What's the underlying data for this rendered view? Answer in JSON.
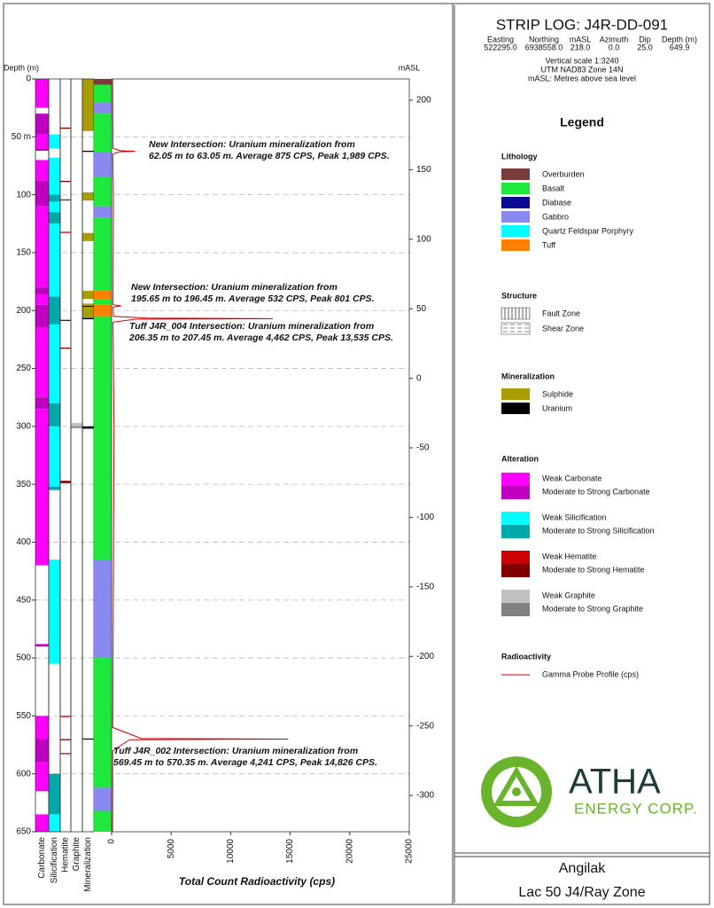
{
  "chart_data": {
    "type": "strip_log",
    "title": "STRIP LOG: J4R-DD-091",
    "collar": {
      "headers": [
        "Easting",
        "Northing",
        "mASL",
        "Azimuth",
        "Dip",
        "Depth (m)"
      ],
      "values": [
        "522295.0",
        "6938558.0",
        "218.0",
        "0.0",
        "25.0",
        "649.9"
      ]
    },
    "notes": [
      "Vertical scale 1:3240",
      "UTM NAD83 Zone 14N",
      "mASL: Metres above sea level"
    ],
    "ylabel": "Depth (m)",
    "y2label": "mASL",
    "xlabel": "Total Count Radioactivity (cps)",
    "ylim": [
      0,
      650
    ],
    "yticks": [
      0,
      {
        "value": 50,
        "label": "50 m"
      },
      100,
      150,
      200,
      250,
      300,
      350,
      400,
      450,
      500,
      550,
      600,
      650
    ],
    "y2lim": [
      215.3,
      -326.1
    ],
    "y2ticks": [
      200,
      150,
      100,
      50,
      0,
      -50,
      -100,
      -150,
      -200,
      -250,
      -300
    ],
    "xlim": [
      0,
      25000
    ],
    "xticks": [
      0,
      5000,
      10000,
      15000,
      20000,
      25000
    ],
    "grid": true,
    "tracks": [
      {
        "name": "Carbonate",
        "intervals": [
          {
            "from": 0,
            "to": 25,
            "color": "#ff00ff"
          },
          {
            "from": 30,
            "to": 48,
            "color": "#c000c0"
          },
          {
            "from": 48,
            "to": 60,
            "color": "#ff00ff"
          },
          {
            "from": 60,
            "to": 62,
            "color": "#c000c0"
          },
          {
            "from": 70,
            "to": 88,
            "color": "#ff00ff"
          },
          {
            "from": 88,
            "to": 110,
            "color": "#c000c0"
          },
          {
            "from": 110,
            "to": 180,
            "color": "#ff00ff"
          },
          {
            "from": 180,
            "to": 186,
            "color": "#c000c0"
          },
          {
            "from": 186,
            "to": 195,
            "color": "#ff00ff"
          },
          {
            "from": 195,
            "to": 215,
            "color": "#c000c0"
          },
          {
            "from": 215,
            "to": 275,
            "color": "#ff00ff"
          },
          {
            "from": 275,
            "to": 285,
            "color": "#c000c0"
          },
          {
            "from": 285,
            "to": 420,
            "color": "#ff00ff"
          },
          {
            "from": 488,
            "to": 490,
            "color": "#c000c0"
          },
          {
            "from": 550,
            "to": 570,
            "color": "#ff00ff"
          },
          {
            "from": 570,
            "to": 590,
            "color": "#c000c0"
          },
          {
            "from": 590,
            "to": 615,
            "color": "#ff00ff"
          },
          {
            "from": 635,
            "to": 650,
            "color": "#ff00ff"
          }
        ]
      },
      {
        "name": "Silicification",
        "intervals": [
          {
            "from": 48,
            "to": 60,
            "color": "#00ffff"
          },
          {
            "from": 68,
            "to": 100,
            "color": "#00ffff"
          },
          {
            "from": 100,
            "to": 106,
            "color": "#00a8a8"
          },
          {
            "from": 106,
            "to": 115,
            "color": "#00ffff"
          },
          {
            "from": 115,
            "to": 125,
            "color": "#00a8a8"
          },
          {
            "from": 125,
            "to": 188,
            "color": "#00ffff"
          },
          {
            "from": 188,
            "to": 212,
            "color": "#00a8a8"
          },
          {
            "from": 212,
            "to": 280,
            "color": "#00ffff"
          },
          {
            "from": 280,
            "to": 300,
            "color": "#00a8a8"
          },
          {
            "from": 300,
            "to": 352,
            "color": "#00ffff"
          },
          {
            "from": 352,
            "to": 355,
            "color": "#00a8a8"
          },
          {
            "from": 415,
            "to": 505,
            "color": "#00ffff"
          },
          {
            "from": 600,
            "to": 635,
            "color": "#00a8a8"
          },
          {
            "from": 635,
            "to": 650,
            "color": "#00ffff"
          }
        ]
      },
      {
        "name": "Hematite",
        "intervals": [
          {
            "from": 42,
            "to": 43,
            "color": "#800000"
          },
          {
            "from": 88,
            "to": 89,
            "color": "#800000"
          },
          {
            "from": 104,
            "to": 105,
            "color": "#cc0000"
          },
          {
            "from": 132,
            "to": 133,
            "color": "#cc0000"
          },
          {
            "from": 208,
            "to": 209,
            "color": "#800000"
          },
          {
            "from": 232,
            "to": 233,
            "color": "#800000"
          },
          {
            "from": 347,
            "to": 349,
            "color": "#800000"
          },
          {
            "from": 550,
            "to": 551,
            "color": "#cc0000"
          },
          {
            "from": 570,
            "to": 571,
            "color": "#800000"
          },
          {
            "from": 582,
            "to": 583,
            "color": "#cc0000"
          }
        ]
      },
      {
        "name": "Graphite",
        "intervals": [
          {
            "from": 297,
            "to": 302,
            "color": "#c0c0c0"
          },
          {
            "from": 300,
            "to": 301,
            "color": "#808080"
          }
        ]
      },
      {
        "name": "Mineralization",
        "intervals": [
          {
            "from": 0,
            "to": 45,
            "color": "#a89c00"
          },
          {
            "from": 62,
            "to": 63,
            "color": "#000000"
          },
          {
            "from": 98,
            "to": 105,
            "color": "#a89c00"
          },
          {
            "from": 133,
            "to": 140,
            "color": "#a89c00"
          },
          {
            "from": 183,
            "to": 190,
            "color": "#a89c00"
          },
          {
            "from": 194,
            "to": 206,
            "color": "#a89c00"
          },
          {
            "from": 196,
            "to": 196.5,
            "color": "#000000"
          },
          {
            "from": 206.3,
            "to": 207.5,
            "color": "#000000"
          },
          {
            "from": 300,
            "to": 302,
            "color": "#000000"
          },
          {
            "from": 569.5,
            "to": 570.4,
            "color": "#000000"
          }
        ]
      }
    ],
    "lithology": [
      {
        "from": 0,
        "to": 5,
        "color": "#7a3b3b"
      },
      {
        "from": 5,
        "to": 20,
        "color": "#1ee83c"
      },
      {
        "from": 20,
        "to": 30,
        "color": "#8888ee"
      },
      {
        "from": 30,
        "to": 63,
        "color": "#1ee83c"
      },
      {
        "from": 63,
        "to": 85,
        "color": "#8888ee"
      },
      {
        "from": 85,
        "to": 110,
        "color": "#1ee83c"
      },
      {
        "from": 110,
        "to": 120,
        "color": "#8888ee"
      },
      {
        "from": 120,
        "to": 183,
        "color": "#1ee83c"
      },
      {
        "from": 183,
        "to": 190,
        "color": "#ff8000"
      },
      {
        "from": 190,
        "to": 195,
        "color": "#1ee83c"
      },
      {
        "from": 195,
        "to": 205,
        "color": "#ff8000"
      },
      {
        "from": 205,
        "to": 415,
        "color": "#1ee83c"
      },
      {
        "from": 415,
        "to": 500,
        "color": "#8888ee"
      },
      {
        "from": 500,
        "to": 612,
        "color": "#1ee83c"
      },
      {
        "from": 612,
        "to": 632,
        "color": "#8888ee"
      },
      {
        "from": 632,
        "to": 650,
        "color": "#1ee83c"
      }
    ],
    "gamma": {
      "color": "#cc0000",
      "depth": [
        0,
        60,
        62,
        62.5,
        63,
        65,
        100,
        195,
        196,
        197,
        205,
        206.5,
        207,
        207.5,
        210,
        300,
        560,
        569.5,
        570,
        570.5,
        580,
        650
      ],
      "cps": [
        80,
        120,
        800,
        1989,
        600,
        100,
        150,
        120,
        801,
        130,
        150,
        3000,
        13535,
        2000,
        120,
        200,
        100,
        2500,
        14826,
        1500,
        100,
        80
      ]
    },
    "annotations": [
      [
        "New Intersection: Uranium mineralization from",
        "62.05 m to 63.05 m. Average 875 CPS, Peak 1,989 CPS."
      ],
      [
        "New Intersection: Uranium mineralization from",
        "195.65 m to 196.45 m. Average 532 CPS, Peak 801 CPS."
      ],
      [
        "Tuff J4R_004 Intersection: Uranium mineralization from",
        "206.35 m to 207.45 m. Average 4,462 CPS, Peak 13,535 CPS."
      ],
      [
        "Tuff J4R_002 Intersection: Uranium mineralization from",
        "569.45 m to 570.35 m. Average 4,241 CPS, Peak 14,826 CPS."
      ]
    ],
    "legend": {
      "title": "Legend",
      "sections": [
        {
          "title": "Lithology",
          "items": [
            {
              "label": "Overburden",
              "color": "#7a3b3b"
            },
            {
              "label": "Basalt",
              "color": "#1ee83c"
            },
            {
              "label": "Diabase",
              "color": "#0a0a90"
            },
            {
              "label": "Gabbro",
              "color": "#8888ee"
            },
            {
              "label": "Quartz Feldspar Porphyry",
              "color": "#00ffff"
            },
            {
              "label": "Tuff",
              "color": "#ff8000"
            }
          ]
        },
        {
          "title": "Structure",
          "items": [
            {
              "label": "Fault Zone"
            },
            {
              "label": "Shear Zone"
            }
          ]
        },
        {
          "title": "Mineralization",
          "items": [
            {
              "label": "Sulphide",
              "color": "#a89c00"
            },
            {
              "label": "Uranium",
              "color": "#000000"
            }
          ]
        },
        {
          "title": "Alteration",
          "items": [
            {
              "label": "Weak Carbonate",
              "color": "#ff00ff"
            },
            {
              "label": "Moderate to Strong Carbonate",
              "color": "#c000c0"
            },
            {
              "label": "Weak Silicification",
              "color": "#00ffff"
            },
            {
              "label": "Moderate to Strong Silicification",
              "color": "#00a8a8"
            },
            {
              "label": "Weak Hematite",
              "color": "#cc0000"
            },
            {
              "label": "Moderate to Strong Hematite",
              "color": "#800000"
            },
            {
              "label": "Weak Graphite",
              "color": "#c0c0c0"
            },
            {
              "label": "Moderate to Strong Graphite",
              "color": "#808080"
            }
          ]
        },
        {
          "title": "Radioactivity",
          "items": [
            {
              "label": "Gamma Probe Profile (cps)",
              "line": "#cc0000"
            }
          ]
        }
      ]
    },
    "logo": {
      "name": "ATHA",
      "tagline": "ENERGY CORP."
    },
    "footer": [
      "Angilak",
      "Lac 50 J4/Ray Zone"
    ]
  }
}
